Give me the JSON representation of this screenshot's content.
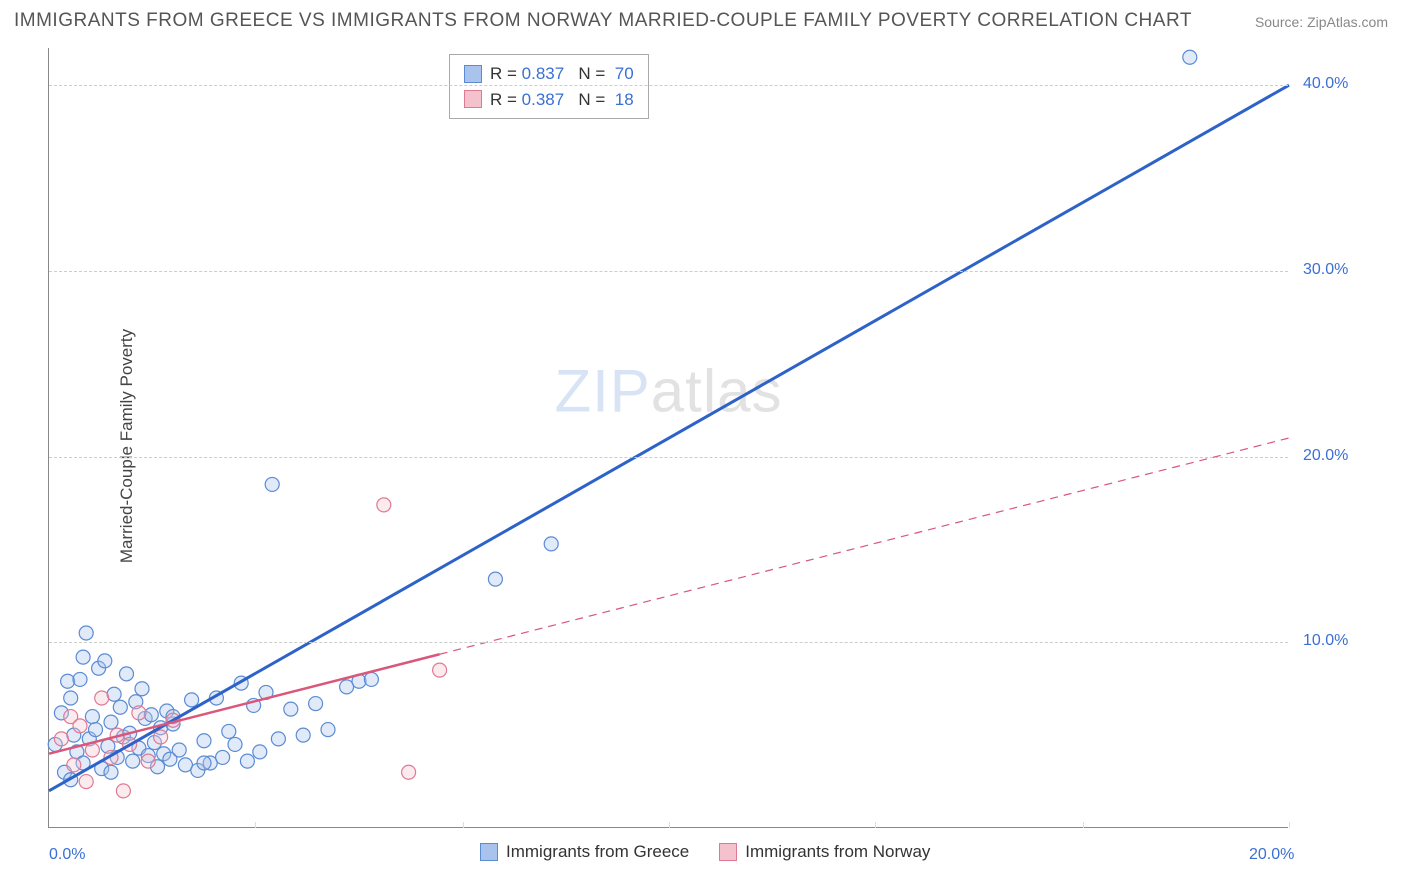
{
  "title": "IMMIGRANTS FROM GREECE VS IMMIGRANTS FROM NORWAY MARRIED-COUPLE FAMILY POVERTY CORRELATION CHART",
  "source": "Source: ZipAtlas.com",
  "ylabel": "Married-Couple Family Poverty",
  "watermark_a": "ZIP",
  "watermark_b": "atlas",
  "chart": {
    "type": "scatter",
    "background_color": "#ffffff",
    "grid_color": "#cccccc",
    "xlim": [
      0,
      20
    ],
    "ylim": [
      0,
      42
    ],
    "xticks": [
      0,
      3.33,
      6.67,
      10,
      13.33,
      16.67,
      20
    ],
    "xtick_labels": [
      "0.0%",
      "",
      "",
      "",
      "",
      "",
      "20.0%"
    ],
    "yticks": [
      10,
      20,
      30,
      40
    ],
    "ytick_labels": [
      "10.0%",
      "20.0%",
      "30.0%",
      "40.0%"
    ],
    "series": [
      {
        "name": "Immigrants from Greece",
        "color_fill": "#a8c4ec",
        "color_stroke": "#5b8bd4",
        "marker": "circle",
        "marker_size": 7,
        "R": "0.837",
        "N": "70",
        "regression": {
          "x1": 0,
          "y1": 2.0,
          "x2": 20,
          "y2": 40.0,
          "color": "#2d62c9",
          "dashed_from": null
        },
        "points": [
          [
            0.1,
            4.5
          ],
          [
            0.2,
            6.2
          ],
          [
            0.25,
            3.0
          ],
          [
            0.3,
            7.9
          ],
          [
            0.35,
            2.6
          ],
          [
            0.4,
            5.0
          ],
          [
            0.45,
            4.1
          ],
          [
            0.5,
            8.0
          ],
          [
            0.55,
            3.5
          ],
          [
            0.6,
            10.5
          ],
          [
            0.65,
            4.8
          ],
          [
            0.7,
            6.0
          ],
          [
            0.75,
            5.3
          ],
          [
            0.8,
            8.6
          ],
          [
            0.85,
            3.2
          ],
          [
            0.9,
            9.0
          ],
          [
            0.95,
            4.4
          ],
          [
            1.0,
            5.7
          ],
          [
            1.05,
            7.2
          ],
          [
            1.1,
            3.8
          ],
          [
            1.15,
            6.5
          ],
          [
            1.2,
            4.9
          ],
          [
            1.25,
            8.3
          ],
          [
            1.3,
            5.1
          ],
          [
            1.35,
            3.6
          ],
          [
            1.4,
            6.8
          ],
          [
            1.45,
            4.3
          ],
          [
            1.5,
            7.5
          ],
          [
            1.55,
            5.9
          ],
          [
            1.6,
            3.9
          ],
          [
            1.65,
            6.1
          ],
          [
            1.7,
            4.6
          ],
          [
            1.75,
            3.3
          ],
          [
            1.8,
            5.4
          ],
          [
            1.85,
            4.0
          ],
          [
            1.9,
            6.3
          ],
          [
            1.95,
            3.7
          ],
          [
            2.0,
            5.6
          ],
          [
            2.1,
            4.2
          ],
          [
            2.2,
            3.4
          ],
          [
            2.3,
            6.9
          ],
          [
            2.4,
            3.1
          ],
          [
            2.5,
            4.7
          ],
          [
            2.6,
            3.5
          ],
          [
            2.7,
            7.0
          ],
          [
            2.8,
            3.8
          ],
          [
            2.9,
            5.2
          ],
          [
            3.0,
            4.5
          ],
          [
            3.1,
            7.8
          ],
          [
            3.2,
            3.6
          ],
          [
            3.3,
            6.6
          ],
          [
            3.4,
            4.1
          ],
          [
            3.5,
            7.3
          ],
          [
            3.7,
            4.8
          ],
          [
            3.9,
            6.4
          ],
          [
            4.1,
            5.0
          ],
          [
            4.3,
            6.7
          ],
          [
            4.5,
            5.3
          ],
          [
            4.8,
            7.6
          ],
          [
            5.0,
            7.9
          ],
          [
            3.6,
            18.5
          ],
          [
            5.2,
            8.0
          ],
          [
            7.2,
            13.4
          ],
          [
            8.1,
            15.3
          ],
          [
            0.35,
            7.0
          ],
          [
            0.55,
            9.2
          ],
          [
            1.0,
            3.0
          ],
          [
            2.0,
            6.0
          ],
          [
            2.5,
            3.5
          ],
          [
            18.4,
            41.5
          ]
        ]
      },
      {
        "name": "Immigrants from Norway",
        "color_fill": "#f4c2cd",
        "color_stroke": "#e07a94",
        "marker": "circle",
        "marker_size": 7,
        "R": "0.387",
        "N": "18",
        "regression": {
          "x1": 0,
          "y1": 4.0,
          "x2": 20,
          "y2": 21.0,
          "color": "#d9577a",
          "dashed_from": 6.3
        },
        "points": [
          [
            0.2,
            4.8
          ],
          [
            0.35,
            6.0
          ],
          [
            0.4,
            3.4
          ],
          [
            0.5,
            5.5
          ],
          [
            0.7,
            4.2
          ],
          [
            0.85,
            7.0
          ],
          [
            1.0,
            3.8
          ],
          [
            1.1,
            5.0
          ],
          [
            1.3,
            4.5
          ],
          [
            1.45,
            6.2
          ],
          [
            1.6,
            3.6
          ],
          [
            1.8,
            4.9
          ],
          [
            2.0,
            5.8
          ],
          [
            1.2,
            2.0
          ],
          [
            0.6,
            2.5
          ],
          [
            5.4,
            17.4
          ],
          [
            5.8,
            3.0
          ],
          [
            6.3,
            8.5
          ]
        ]
      }
    ]
  },
  "legend_top": {
    "rows": [
      {
        "swatch_fill": "#a8c4ec",
        "swatch_stroke": "#5b8bd4",
        "r_label": "R =",
        "r_val": "0.837",
        "n_label": "N =",
        "n_val": "70"
      },
      {
        "swatch_fill": "#f4c2cd",
        "swatch_stroke": "#e07a94",
        "r_label": "R =",
        "r_val": "0.387",
        "n_label": "N =",
        "n_val": "18"
      }
    ]
  },
  "legend_bottom": {
    "items": [
      {
        "swatch_fill": "#a8c4ec",
        "swatch_stroke": "#5b8bd4",
        "label": "Immigrants from Greece"
      },
      {
        "swatch_fill": "#f4c2cd",
        "swatch_stroke": "#e07a94",
        "label": "Immigrants from Norway"
      }
    ]
  }
}
